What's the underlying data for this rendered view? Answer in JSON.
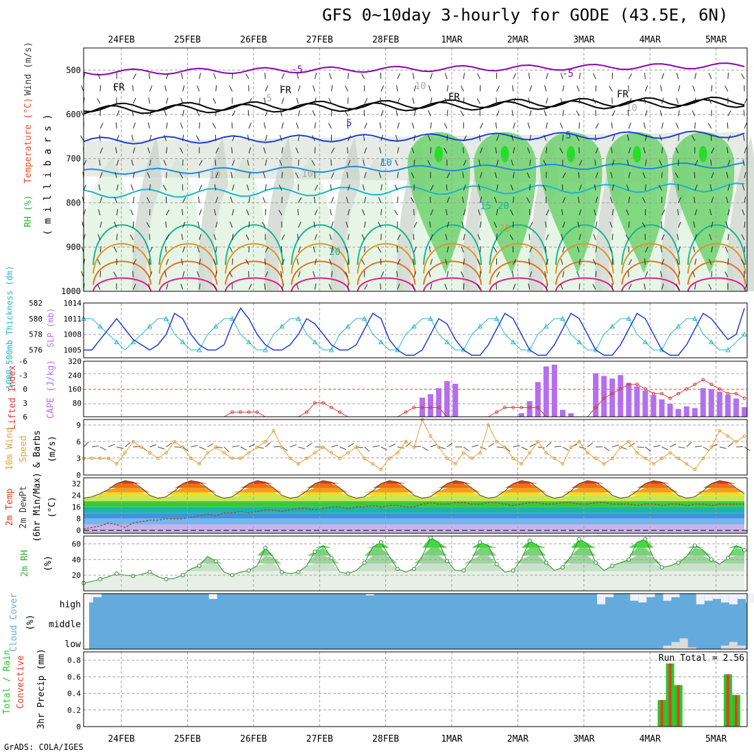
{
  "title": "GFS 0~10day 3-hourly for GODE (43.5E, 6N)",
  "credit": "GrADS: COLA/IGES",
  "colors": {
    "grid": "#a0a0a0",
    "freezing": "#000000",
    "temp_neg": "#8c00b4",
    "temp_cold": "#1e3cd2",
    "temp_10": "#1e8cdc",
    "temp_15": "#1eb4c8",
    "temp_20": "#1eb48c",
    "temp_25": "#dc9628",
    "temp_30": "#e66e1e",
    "temp_35": "#dc1e8c",
    "rh_light": "#e6f5e6",
    "rh_mid": "#c8d2c8",
    "rh_green": "#6ed26e",
    "rh_bright": "#28dc28",
    "slp": "#1e3cd2",
    "thickness": "#28b4c8",
    "cape": "#b46ef0",
    "lifted_index": "#dc3c3c",
    "wind_speed": "#e6a03c",
    "barbs": "#5a4630",
    "rh2m": "#28b428",
    "cloud": "#64aadc",
    "precip_total": "#28c828",
    "precip_conv": "#e63c28"
  },
  "time_axis": {
    "dates": [
      "24FEB",
      "25FEB",
      "26FEB",
      "27FEB",
      "28FEB",
      "1MAR",
      "2MAR",
      "3MAR",
      "4MAR",
      "5MAR"
    ],
    "steps_per_day": 8,
    "total_steps": 81
  },
  "panels": {
    "upper_air": {
      "ylabels": [
        {
          "text": "RH (%)",
          "color": "#28b428"
        },
        {
          "text": "Temperature (°C)",
          "color": "#e65028"
        },
        {
          "text": "Wind (m/s)",
          "color": "#3c3c3c"
        },
        {
          "text": "( m i l l i b a r s )",
          "color": "#000000"
        }
      ],
      "pressure_ticks": [
        "500",
        "600",
        "700",
        "800",
        "900",
        "1000"
      ],
      "contour_labels": [
        "FR",
        "FR",
        "FR",
        "FR",
        "-5",
        "-5",
        "5",
        "5",
        "10",
        "10",
        "10",
        "15",
        "20",
        "20",
        "25",
        "10",
        "10",
        "-5"
      ]
    },
    "slp_thickness": {
      "ylabel_thickness": "1000-500mb Thickness (dm)",
      "ylabel_slp": "SLP (mb)",
      "thickness_ticks": [
        "582",
        "580",
        "578",
        "576"
      ],
      "slp_ticks": [
        "1014",
        "1011",
        "1008",
        "1005"
      ],
      "slp_range": [
        1003.5,
        1014
      ],
      "thickness_range": [
        575,
        582
      ]
    },
    "cape_li": {
      "ylabel_li": "Lifted Index",
      "ylabel_cape": "CAPE (J/kg)",
      "li_ticks": [
        "-6",
        "-3",
        "0",
        "3",
        "6"
      ],
      "cape_ticks": [
        "320",
        "240",
        "160",
        "80"
      ],
      "cape_range": [
        0,
        320
      ],
      "li_range": [
        -6,
        6
      ]
    },
    "wind10m": {
      "ylabel": [
        "10m Wind",
        "Speed",
        "& Barbs",
        "(m/s)"
      ],
      "ticks": [
        "9",
        "6",
        "3",
        "0"
      ],
      "range": [
        0,
        10
      ]
    },
    "temp2m": {
      "ylabel": [
        "2m Temp",
        "2m DewPt",
        "(6hr Min/Max)",
        "(°C)"
      ],
      "ticks": [
        "32",
        "24",
        "16",
        "8",
        "0"
      ],
      "range": [
        -2,
        36
      ]
    },
    "rh2m": {
      "ylabel": [
        "2m RH",
        "(%)"
      ],
      "ticks": [
        "60",
        "40",
        "20"
      ],
      "range": [
        0,
        70
      ]
    },
    "cloud": {
      "ylabel": [
        "Cloud Cover",
        "(%)"
      ],
      "levels": [
        "high",
        "middle",
        "low"
      ]
    },
    "precip": {
      "ylabel": [
        "Total / Rain",
        "Convective",
        "3hr Precip (mm)"
      ],
      "ticks": [
        "0.8",
        "0.6",
        "0.4",
        "0.2",
        "0"
      ],
      "range": [
        0,
        0.9
      ],
      "run_total": "Run Total = 2.56"
    }
  },
  "chart_data": {
    "type": "line",
    "x_unit": "3-hourly forecast step from 23FEB 18Z",
    "series": [
      {
        "name": "SLP (mb)",
        "values": [
          1005,
          1005,
          1007,
          1009,
          1011,
          1009,
          1007,
          1006,
          1005,
          1006,
          1008,
          1012,
          1011,
          1008,
          1006,
          1005,
          1005,
          1006,
          1010,
          1013,
          1011,
          1008,
          1006,
          1005,
          1005,
          1006,
          1008,
          1011,
          1010,
          1008,
          1006,
          1005,
          1005,
          1006,
          1009,
          1012,
          1011,
          1007,
          1005,
          1004,
          1004,
          1005,
          1008,
          1011,
          1010,
          1007,
          1005,
          1004,
          1004,
          1006,
          1009,
          1012,
          1011,
          1008,
          1005,
          1004,
          1004,
          1006,
          1009,
          1012,
          1011,
          1008,
          1005,
          1004,
          1004,
          1006,
          1009,
          1012,
          1011,
          1008,
          1005,
          1004,
          1004,
          1006,
          1009,
          1012,
          1011,
          1009,
          1007,
          1008,
          1013
        ]
      },
      {
        "name": "1000-500mb Thickness (dm)",
        "values": [
          580,
          580,
          579,
          578,
          577,
          576,
          577,
          578,
          579,
          580,
          580,
          578,
          577,
          576,
          576,
          578,
          579,
          580,
          580,
          578,
          577,
          576,
          576,
          578,
          579,
          580,
          580,
          578,
          577,
          576,
          576,
          578,
          579,
          580,
          580,
          578,
          577,
          576,
          576,
          578,
          579,
          580,
          580,
          578,
          577,
          576,
          576,
          578,
          579,
          580,
          580,
          578,
          577,
          576,
          576,
          578,
          579,
          580,
          580,
          578,
          577,
          576,
          576,
          578,
          579,
          580,
          580,
          578,
          577,
          576,
          576,
          578,
          579,
          580,
          580,
          578,
          577,
          576,
          576,
          577,
          578
        ]
      },
      {
        "name": "CAPE (J/kg)",
        "values": [
          0,
          0,
          0,
          0,
          0,
          0,
          0,
          0,
          0,
          0,
          0,
          0,
          0,
          0,
          0,
          0,
          0,
          0,
          0,
          0,
          0,
          0,
          0,
          0,
          0,
          0,
          0,
          0,
          0,
          0,
          0,
          0,
          0,
          0,
          0,
          0,
          0,
          0,
          0,
          0,
          0,
          110,
          130,
          165,
          205,
          190,
          0,
          0,
          0,
          0,
          0,
          0,
          0,
          20,
          90,
          200,
          290,
          300,
          40,
          20,
          0,
          0,
          250,
          235,
          220,
          240,
          195,
          175,
          150,
          125,
          100,
          75,
          45,
          60,
          50,
          165,
          160,
          145,
          125,
          105,
          55
        ]
      },
      {
        "name": "Lifted Index",
        "values": [
          7,
          7,
          7,
          7,
          7,
          7,
          7,
          7,
          7,
          7,
          7,
          7,
          7,
          7,
          7,
          7,
          7,
          6,
          5,
          5,
          5,
          5,
          6,
          7,
          7,
          7,
          7,
          5,
          3,
          3,
          4,
          5,
          7,
          7,
          7,
          7,
          7,
          7,
          6,
          5,
          4,
          4,
          4,
          4,
          6,
          7,
          7,
          7,
          7,
          6,
          5,
          4,
          4,
          4,
          4,
          4,
          6,
          7,
          7,
          7,
          7,
          6,
          4,
          2,
          1,
          0,
          -1,
          -1,
          0,
          1,
          1,
          2,
          1,
          0,
          -1,
          -2,
          -1,
          0,
          1,
          1,
          2
        ]
      },
      {
        "name": "10m Wind Speed (m/s)",
        "values": [
          3,
          3,
          3,
          3,
          2,
          4,
          6,
          5,
          4,
          3,
          4,
          6,
          5,
          3,
          2,
          4,
          5,
          4,
          3,
          3,
          4,
          5,
          6,
          8,
          5,
          3,
          2,
          3,
          4,
          5,
          4,
          3,
          4,
          5,
          3,
          2,
          1,
          3,
          4,
          6,
          5,
          10,
          7,
          5,
          3,
          2,
          4,
          3,
          4,
          9,
          6,
          5,
          3,
          2,
          4,
          6,
          4,
          3,
          2,
          5,
          6,
          4,
          3,
          2,
          3,
          5,
          6,
          4,
          3,
          2,
          3,
          4,
          3,
          2,
          1,
          3,
          5,
          8,
          7,
          6,
          7
        ]
      },
      {
        "name": "2m Temp (°C)",
        "values": [
          22,
          23,
          25,
          28,
          32,
          34,
          33,
          29,
          24,
          22,
          23,
          27,
          32,
          34,
          33,
          29,
          24,
          22,
          23,
          27,
          32,
          34,
          33,
          29,
          24,
          22,
          23,
          27,
          32,
          34,
          33,
          29,
          24,
          22,
          23,
          27,
          32,
          34,
          33,
          29,
          24,
          22,
          23,
          27,
          32,
          34,
          33,
          29,
          24,
          22,
          23,
          27,
          32,
          34,
          33,
          29,
          24,
          22,
          23,
          27,
          32,
          34,
          33,
          29,
          24,
          22,
          23,
          27,
          32,
          34,
          33,
          29,
          24,
          22,
          23,
          27,
          32,
          34,
          33,
          29,
          25
        ]
      },
      {
        "name": "2m DewPt (°C)",
        "values": [
          1,
          2,
          3,
          5,
          4,
          2,
          5,
          6,
          7,
          7,
          8,
          8,
          8,
          9,
          10,
          11,
          10,
          12,
          12,
          13,
          12,
          13,
          14,
          14,
          13,
          14,
          15,
          15,
          14,
          15,
          16,
          16,
          15,
          16,
          16,
          17,
          16,
          17,
          17,
          16,
          16,
          18,
          19,
          18,
          18,
          19,
          19,
          18,
          18,
          19,
          19,
          18,
          17,
          18,
          19,
          19,
          18,
          18,
          19,
          19,
          18,
          18,
          19,
          19,
          18,
          18,
          18,
          17,
          18,
          18,
          17,
          18,
          18,
          17,
          18,
          18,
          17,
          18,
          18,
          18,
          18
        ]
      },
      {
        "name": "2m RH (%)",
        "values": [
          10,
          12,
          15,
          18,
          22,
          20,
          19,
          21,
          24,
          18,
          15,
          16,
          20,
          28,
          32,
          44,
          38,
          24,
          20,
          24,
          26,
          32,
          55,
          42,
          24,
          22,
          24,
          32,
          50,
          58,
          42,
          24,
          22,
          26,
          36,
          56,
          62,
          44,
          28,
          24,
          28,
          44,
          68,
          62,
          38,
          26,
          26,
          40,
          62,
          58,
          34,
          24,
          26,
          40,
          64,
          58,
          36,
          26,
          30,
          44,
          66,
          60,
          36,
          26,
          32,
          36,
          40,
          62,
          66,
          42,
          30,
          32,
          36,
          44,
          58,
          52,
          40,
          34,
          42,
          58,
          52
        ]
      },
      {
        "name": "3hr Precip Total (mm)",
        "values": [
          0,
          0,
          0,
          0,
          0,
          0,
          0,
          0,
          0,
          0,
          0,
          0,
          0,
          0,
          0,
          0,
          0,
          0,
          0,
          0,
          0,
          0,
          0,
          0,
          0,
          0,
          0,
          0,
          0,
          0,
          0,
          0,
          0,
          0,
          0,
          0,
          0,
          0,
          0,
          0,
          0,
          0,
          0,
          0,
          0,
          0,
          0,
          0,
          0,
          0,
          0,
          0,
          0,
          0,
          0,
          0,
          0,
          0,
          0,
          0,
          0,
          0,
          0,
          0,
          0,
          0,
          0,
          0,
          0,
          0,
          0.32,
          0.76,
          0.5,
          0,
          0,
          0,
          0,
          0,
          0.63,
          0.38,
          0
        ]
      },
      {
        "name": "3hr Precip Convective (mm)",
        "values": [
          0,
          0,
          0,
          0,
          0,
          0,
          0,
          0,
          0,
          0,
          0,
          0,
          0,
          0,
          0,
          0,
          0,
          0,
          0,
          0,
          0,
          0,
          0,
          0,
          0,
          0,
          0,
          0,
          0,
          0,
          0,
          0,
          0,
          0,
          0,
          0,
          0,
          0,
          0,
          0,
          0,
          0,
          0,
          0,
          0,
          0,
          0,
          0,
          0,
          0,
          0,
          0,
          0,
          0,
          0,
          0,
          0,
          0,
          0,
          0,
          0,
          0,
          0,
          0,
          0,
          0,
          0,
          0,
          0,
          0,
          0.32,
          0.76,
          0.5,
          0,
          0,
          0,
          0,
          0,
          0.63,
          0.38,
          0
        ]
      },
      {
        "name": "High Cloud Cover (%)",
        "values": [
          50,
          80,
          100,
          100,
          100,
          100,
          100,
          100,
          100,
          100,
          100,
          100,
          100,
          100,
          100,
          70,
          100,
          100,
          100,
          100,
          100,
          100,
          100,
          100,
          100,
          100,
          100,
          100,
          100,
          100,
          100,
          100,
          100,
          100,
          90,
          100,
          100,
          100,
          100,
          100,
          100,
          100,
          100,
          100,
          100,
          100,
          100,
          100,
          100,
          100,
          100,
          100,
          100,
          100,
          100,
          100,
          100,
          100,
          100,
          100,
          100,
          100,
          40,
          80,
          100,
          100,
          60,
          50,
          80,
          100,
          60,
          80,
          100,
          100,
          40,
          60,
          70,
          50,
          40,
          70,
          50
        ]
      },
      {
        "name": "Low Cloud Cover (%)",
        "values": [
          0,
          0,
          0,
          0,
          0,
          0,
          0,
          0,
          0,
          0,
          0,
          0,
          0,
          0,
          0,
          0,
          0,
          0,
          0,
          0,
          0,
          0,
          0,
          0,
          0,
          0,
          0,
          0,
          0,
          0,
          0,
          0,
          0,
          0,
          0,
          0,
          0,
          0,
          0,
          0,
          0,
          0,
          0,
          0,
          0,
          0,
          0,
          0,
          0,
          0,
          0,
          0,
          0,
          0,
          0,
          0,
          0,
          0,
          0,
          0,
          0,
          0,
          0,
          0,
          0,
          0,
          0,
          0,
          0,
          0,
          20,
          40,
          60,
          10,
          0,
          0,
          0,
          20,
          40,
          20,
          0
        ]
      }
    ]
  }
}
